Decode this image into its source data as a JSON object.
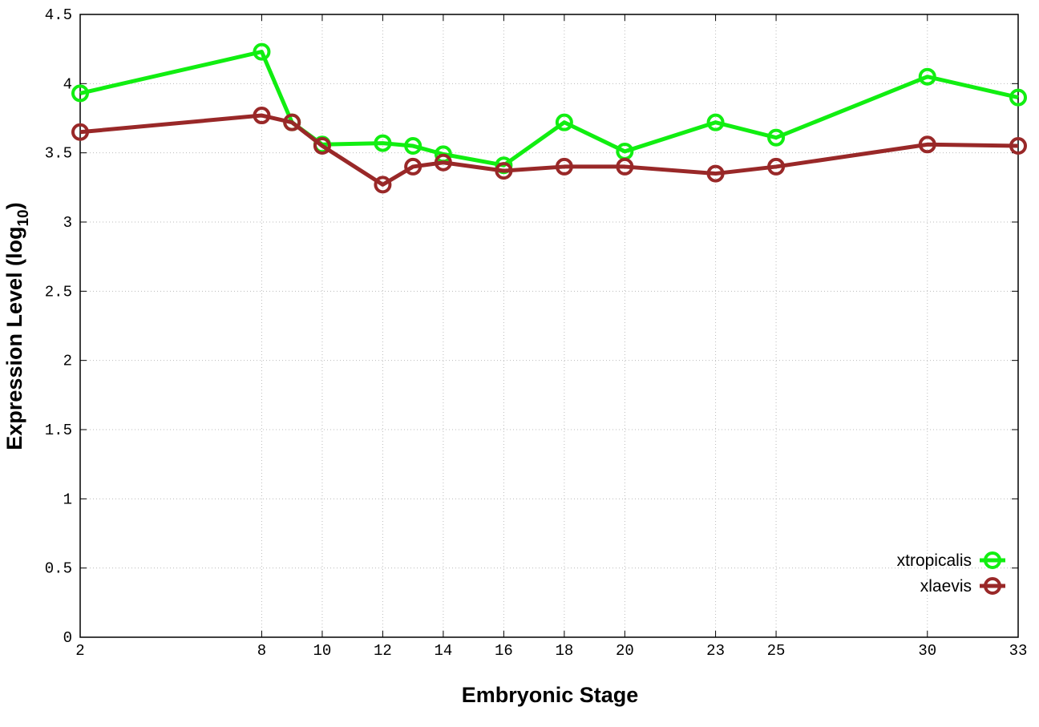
{
  "chart_data": {
    "type": "line",
    "title": "",
    "xlabel": "Embryonic Stage",
    "ylabel": "Expression Level (log",
    "ylabel_subscript": "10",
    "ylabel_close": ")",
    "xlim": [
      2,
      33
    ],
    "ylim": [
      0,
      4.5
    ],
    "x": [
      2,
      8,
      9,
      10,
      12,
      13,
      14,
      16,
      18,
      20,
      23,
      25,
      30,
      33
    ],
    "x_tick_labels": [
      "2",
      "8",
      "10",
      "12",
      "14",
      "16",
      "18",
      "20",
      "23",
      "25",
      "30",
      "33"
    ],
    "y_ticks": [
      0,
      0.5,
      1,
      1.5,
      2,
      2.5,
      3,
      3.5,
      4,
      4.5
    ],
    "y_tick_labels": [
      "0",
      "0.5",
      "1",
      "1.5",
      "2",
      "2.5",
      "3",
      "3.5",
      "4",
      "4.5"
    ],
    "grid": true,
    "legend_position": "bottom-right",
    "series": [
      {
        "name": "xtropicalis",
        "color": "#11ee11",
        "values": [
          3.93,
          4.23,
          3.72,
          3.56,
          3.57,
          3.55,
          3.49,
          3.41,
          3.72,
          3.51,
          3.72,
          3.61,
          4.05,
          3.9
        ]
      },
      {
        "name": "xlaevis",
        "color": "#992828",
        "values": [
          3.65,
          3.77,
          3.72,
          3.55,
          3.27,
          3.4,
          3.43,
          3.37,
          3.4,
          3.4,
          3.35,
          3.4,
          3.56,
          3.55
        ]
      }
    ]
  }
}
